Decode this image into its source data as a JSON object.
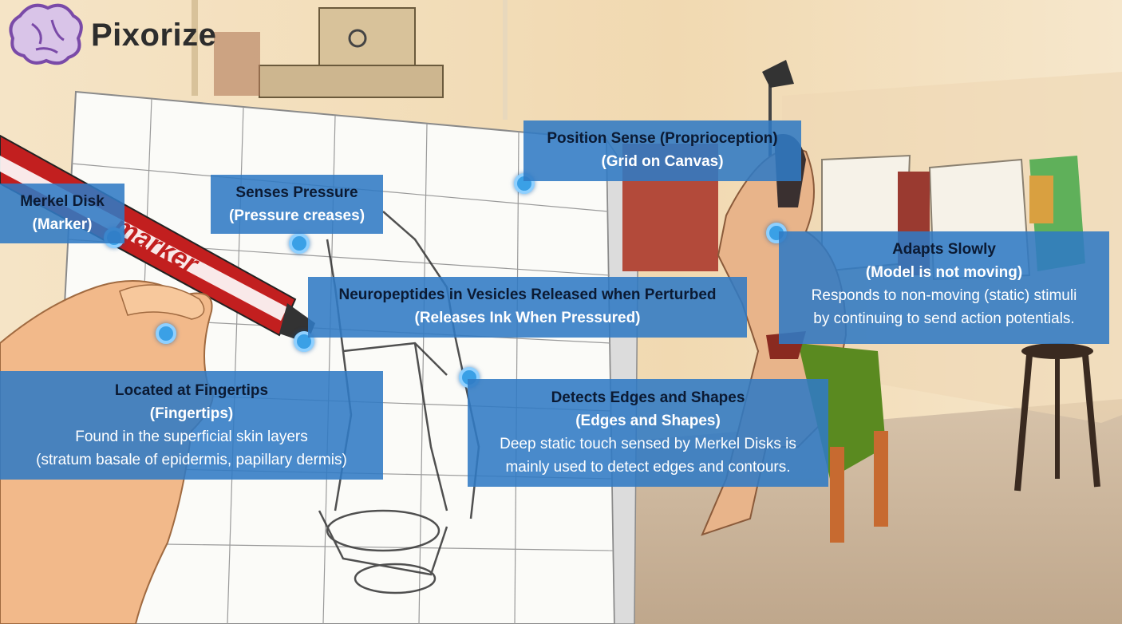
{
  "logo": {
    "text": "Pixorize"
  },
  "labels": {
    "merkel": {
      "title": "Merkel Disk",
      "sub": "(Marker)"
    },
    "pressure": {
      "title": "Senses Pressure",
      "sub": "(Pressure creases)"
    },
    "position": {
      "title": "Position Sense (Proprioception)",
      "sub": "(Grid on Canvas)"
    },
    "neuro": {
      "title": "Neuropeptides in Vesicles Released when Perturbed",
      "sub": "(Releases Ink When Pressured)"
    },
    "adapts": {
      "title": "Adapts Slowly",
      "sub": "(Model is not moving)",
      "desc1": "Responds to non-moving (static) stimuli",
      "desc2": "by continuing to send action potentials."
    },
    "fingertips": {
      "title": "Located at Fingertips",
      "sub": "(Fingertips)",
      "desc1": "Found in the superficial skin layers",
      "desc2": "(stratum basale of epidermis, papillary dermis)"
    },
    "edges": {
      "title": "Detects Edges and Shapes",
      "sub": "(Edges and Shapes)",
      "desc1": "Deep static touch sensed by Merkel Disks is",
      "desc2": "mainly used to detect edges and contours."
    }
  },
  "illustration": {
    "marker_text": "marker"
  },
  "colors": {
    "label_bg": "#307ac4",
    "dot": "#3aa0e6",
    "paper": "#fbfbf8",
    "wall": "#f3dfbe",
    "floor": "#c9b49c"
  }
}
